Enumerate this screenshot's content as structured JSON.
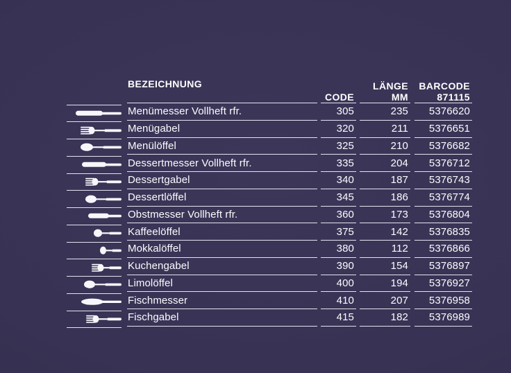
{
  "colors": {
    "background": "#383254",
    "background_center": "#3c3759",
    "background_edge": "#312d4b",
    "text": "#ffffff",
    "line": "#e4e4f0"
  },
  "table": {
    "headers": {
      "bezeichnung": "BEZEICHNUNG",
      "code": "CODE",
      "laenge_line1": "LÄNGE",
      "laenge_line2": "MM",
      "barcode_line1": "BARCODE",
      "barcode_line2": "871115"
    },
    "rows": [
      {
        "icon": "knife-icon",
        "name": "Menümesser Vollheft rfr.",
        "code": "305",
        "laenge": "235",
        "barcode": "5376620"
      },
      {
        "icon": "fork-icon",
        "name": "Menügabel",
        "code": "320",
        "laenge": "211",
        "barcode": "5376651"
      },
      {
        "icon": "spoon-icon",
        "name": "Menülöffel",
        "code": "325",
        "laenge": "210",
        "barcode": "5376682"
      },
      {
        "icon": "knife-icon",
        "name": "Dessertmesser Vollheft rfr.",
        "code": "335",
        "laenge": "204",
        "barcode": "5376712"
      },
      {
        "icon": "fork-icon",
        "name": "Dessertgabel",
        "code": "340",
        "laenge": "187",
        "barcode": "5376743"
      },
      {
        "icon": "spoon-icon",
        "name": "Dessertlöffel",
        "code": "345",
        "laenge": "186",
        "barcode": "5376774"
      },
      {
        "icon": "knife-icon",
        "name": "Obstmesser Vollheft rfr.",
        "code": "360",
        "laenge": "173",
        "barcode": "5376804"
      },
      {
        "icon": "spoon-icon",
        "name": "Kaffeelöffel",
        "code": "375",
        "laenge": "142",
        "barcode": "5376835"
      },
      {
        "icon": "spoon-icon",
        "name": "Mokkalöffel",
        "code": "380",
        "laenge": "112",
        "barcode": "5376866"
      },
      {
        "icon": "fork-icon",
        "name": "Kuchengabel",
        "code": "390",
        "laenge": "154",
        "barcode": "5376897"
      },
      {
        "icon": "spoon-icon",
        "name": "Limolöffel",
        "code": "400",
        "laenge": "194",
        "barcode": "5376927"
      },
      {
        "icon": "fish-knife-icon",
        "name": "Fischmesser",
        "code": "410",
        "laenge": "207",
        "barcode": "5376958"
      },
      {
        "icon": "fork-icon",
        "name": "Fischgabel",
        "code": "415",
        "laenge": "182",
        "barcode": "5376989"
      }
    ]
  }
}
